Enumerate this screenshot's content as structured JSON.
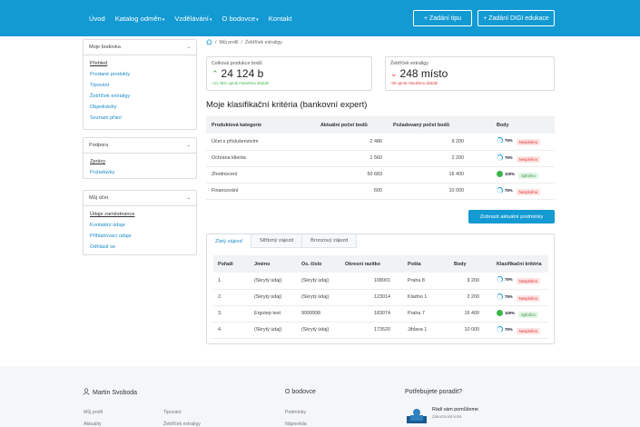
{
  "nav": {
    "items": [
      {
        "label": "Úvod"
      },
      {
        "label": "Katalog odměn",
        "caret": "▾"
      },
      {
        "label": "Vzdělávání",
        "caret": "▾"
      },
      {
        "label": "O bodovce",
        "caret": "▾"
      },
      {
        "label": "Kontakt"
      }
    ],
    "btn_tip": "+ Zadání tipu",
    "btn_digi": "+ Zadání DIGI edukace"
  },
  "sidebar": {
    "bodovka": {
      "title": "Moje bodovka",
      "items": [
        "Přehled",
        "Prodané produkty",
        "Tipování",
        "Žebříček extraligy",
        "Objednávky",
        "Seznam přání"
      ]
    },
    "podpora": {
      "title": "Podpora",
      "items": [
        "Zprávy",
        "Požadavky"
      ]
    },
    "ucet": {
      "title": "Můj účet",
      "items": [
        "Údaje zaměstnance",
        "Kontaktní údaje",
        "Přihlašovací údaje",
        "Odhlásit se"
      ]
    }
  },
  "breadcrumb": {
    "home_icon": "home-icon",
    "sep1": "/",
    "profile": "Můj profil",
    "sep2": "/",
    "current": "Žebříček extraligy"
  },
  "stats": {
    "production": {
      "label": "Celková produkce bodů",
      "arrow": "⌃",
      "value": "24 124 b",
      "note": "+21.45% oproti minulému období"
    },
    "ladder": {
      "label": "Žebříček extraligy",
      "arrow": "⌄",
      "value": "248 místo",
      "note": "-30 oproti minulému období"
    }
  },
  "criteria": {
    "title": "Moje klasifikační kritéria (bankovní expert)",
    "columns": [
      "Produktová kategorie",
      "Aktuální počet bodů",
      "Požadovaný počet bodů",
      "Body"
    ],
    "rows": [
      {
        "category": "Účet s příslušenstvím",
        "current": "2 486",
        "required": "9 200",
        "pct": "75%",
        "status": "Nesplněno",
        "ok": false
      },
      {
        "category": "Ochrana klienta",
        "current": "1 560",
        "required": "2 200",
        "pct": "75%",
        "status": "Nesplněno",
        "ok": false
      },
      {
        "category": "Zhodnocení",
        "current": "50 683",
        "required": "16 400",
        "pct": "100%",
        "status": "Splněno",
        "ok": true
      },
      {
        "category": "Financování",
        "current": "600",
        "required": "10 000",
        "pct": "75%",
        "status": "Nesplněno",
        "ok": false
      }
    ],
    "button": "Zobrazit aktuální podmínky"
  },
  "tabs": [
    "Zlatý zájezd",
    "Stříbrný zájezd",
    "Bronzový zájezd"
  ],
  "trip_table": {
    "columns": [
      "Pořadí",
      "Jméno",
      "Os. číslo",
      "Okresní razítko",
      "Pošta",
      "Body",
      "Klasifikační kritéria"
    ],
    "rows": [
      {
        "rank": "1.",
        "name": "(Skrytý údaj)",
        "id": "(Skrytý údaj)",
        "stamp": "108001",
        "post": "Praha 8",
        "points": "9 200",
        "pct": "75%",
        "status": "Nesplněno",
        "ok": false
      },
      {
        "rank": "2.",
        "name": "(Skrytý údaj)",
        "id": "(Skrytý údaj)",
        "stamp": "123014",
        "post": "Kladno 1",
        "points": "2 200",
        "pct": "75%",
        "status": "Nesplněno",
        "ok": false
      },
      {
        "rank": "3.",
        "name": "Ergotep test",
        "id": "9999998",
        "stamp": "183074",
        "post": "Praha 7",
        "points": "16 400",
        "pct": "100%",
        "status": "Splněno",
        "ok": true
      },
      {
        "rank": "4.",
        "name": "(Skrytý údaj)",
        "id": "(Skrytý údaj)",
        "stamp": "173520",
        "post": "Jihlava 1",
        "points": "10 000",
        "pct": "75%",
        "status": "Nesplněno",
        "ok": false
      }
    ]
  },
  "footer": {
    "user": "Martin Svoboda",
    "user_icon": "user-icon",
    "links_col1": [
      "Můj profil",
      "Aktuality"
    ],
    "links_col2": [
      "Tipování",
      "Žebříček extraligy"
    ],
    "bodovce_title": "O bodovce",
    "bodovce_links": [
      "Podmínky",
      "Nápověda"
    ],
    "help_title": "Potřebujete poradit?",
    "help_heading": "Rádi vám pomůžeme",
    "help_sub": "Zákaznická linka"
  }
}
